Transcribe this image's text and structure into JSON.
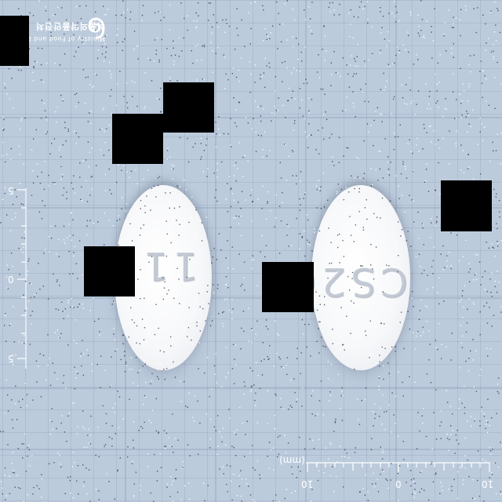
{
  "logo": {
    "line_1": "Ministry of Food and Drug Safety",
    "line_2": "식품의약품안전처",
    "mark": "mfds-spiral-logo"
  },
  "pills": [
    {
      "imprint": "11"
    },
    {
      "imprint": "CS20"
    }
  ],
  "scale_left": {
    "labels": [
      "5",
      "0",
      "5"
    ]
  },
  "scale_bottom": {
    "unit": "(mm)",
    "labels": [
      "10",
      "0",
      "10"
    ]
  },
  "colors": {
    "background": "#bccbdc",
    "grid": "#8ea2b9",
    "pill": "#f7f8fa",
    "occluder": "#000000"
  }
}
